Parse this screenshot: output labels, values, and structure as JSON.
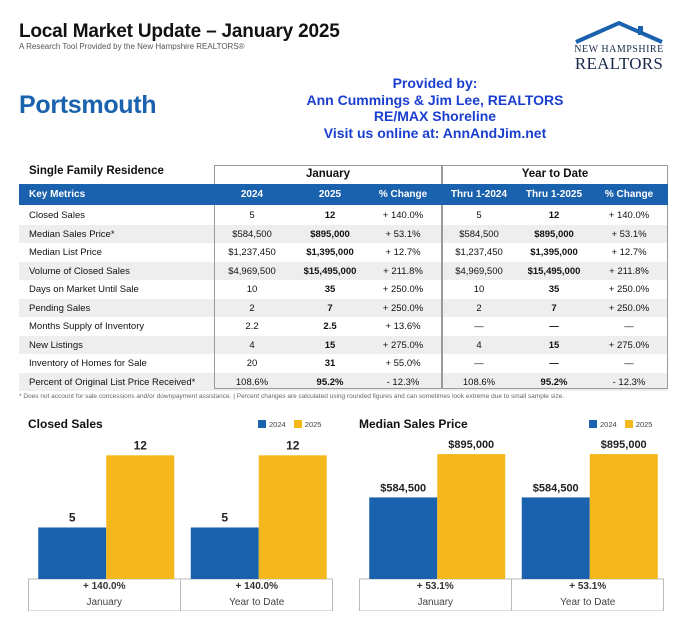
{
  "header": {
    "title": "Local Market Update – January 2025",
    "subtitle": "A Research Tool Provided by the New Hampshire REALTORS®"
  },
  "logo": {
    "line1": "NEW HAMPSHIRE",
    "line2": "REALTORS"
  },
  "city": "Portsmouth",
  "provided": {
    "line1": "Provided by:",
    "line2": "Ann Cummings & Jim Lee, REALTORS",
    "line3": "RE/MAX Shoreline",
    "line4": "Visit us online at: AnnAndJim.net"
  },
  "table": {
    "section_label": "Single Family Residence",
    "group_january": "January",
    "group_ytd": "Year to Date",
    "headers": [
      "Key Metrics",
      "2024",
      "2025",
      "% Change",
      "Thru 1-2024",
      "Thru 1-2025",
      "% Change"
    ],
    "rows": [
      [
        "Closed Sales",
        "5",
        "12",
        "+ 140.0%",
        "5",
        "12",
        "+ 140.0%"
      ],
      [
        "Median Sales Price*",
        "$584,500",
        "$895,000",
        "+ 53.1%",
        "$584,500",
        "$895,000",
        "+ 53.1%"
      ],
      [
        "Median List Price",
        "$1,237,450",
        "$1,395,000",
        "+ 12.7%",
        "$1,237,450",
        "$1,395,000",
        "+ 12.7%"
      ],
      [
        "Volume of Closed Sales",
        "$4,969,500",
        "$15,495,000",
        "+ 211.8%",
        "$4,969,500",
        "$15,495,000",
        "+ 211.8%"
      ],
      [
        "Days on Market Until Sale",
        "10",
        "35",
        "+ 250.0%",
        "10",
        "35",
        "+ 250.0%"
      ],
      [
        "Pending Sales",
        "2",
        "7",
        "+ 250.0%",
        "2",
        "7",
        "+ 250.0%"
      ],
      [
        "Months Supply of Inventory",
        "2.2",
        "2.5",
        "+ 13.6%",
        "—",
        "—",
        "—"
      ],
      [
        "New Listings",
        "4",
        "15",
        "+ 275.0%",
        "4",
        "15",
        "+ 275.0%"
      ],
      [
        "Inventory of Homes for Sale",
        "20",
        "31",
        "+ 55.0%",
        "—",
        "—",
        "—"
      ],
      [
        "Percent of Original List Price Received*",
        "108.6%",
        "95.2%",
        "- 12.3%",
        "108.6%",
        "95.2%",
        "- 12.3%"
      ]
    ]
  },
  "footnote": "* Does not account for sale concessions and/or downpayment assistance.  |  Percent changes are calculated using rounded figures and can sometimes look extreme due to small sample size.",
  "colors": {
    "blue": "#1a62ad",
    "gold": "#f5b81c",
    "link_blue": "#1a3fd0"
  },
  "chart_data": [
    {
      "type": "bar",
      "title": "Closed Sales",
      "categories": [
        "January",
        "Year to Date"
      ],
      "series": [
        {
          "name": "2024",
          "values": [
            5,
            5
          ],
          "labels": [
            "5",
            "5"
          ]
        },
        {
          "name": "2025",
          "values": [
            12,
            12
          ],
          "labels": [
            "12",
            "12"
          ]
        }
      ],
      "changes": [
        "+ 140.0%",
        "+ 140.0%"
      ],
      "legend": "top-right",
      "ylim": [
        0,
        13
      ]
    },
    {
      "type": "bar",
      "title": "Median Sales Price",
      "categories": [
        "January",
        "Year to Date"
      ],
      "series": [
        {
          "name": "2024",
          "values": [
            584500,
            584500
          ],
          "labels": [
            "$584,500",
            "$584,500"
          ]
        },
        {
          "name": "2025",
          "values": [
            895000,
            895000
          ],
          "labels": [
            "$895,000",
            "$895,000"
          ]
        }
      ],
      "changes": [
        "+ 53.1%",
        "+ 53.1%"
      ],
      "legend": "top-right",
      "ylim": [
        0,
        960000
      ]
    }
  ]
}
